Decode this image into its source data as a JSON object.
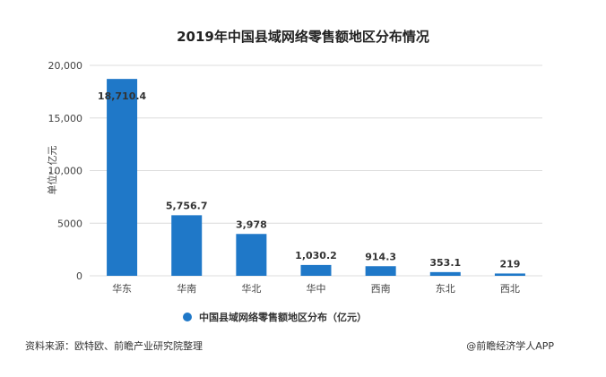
{
  "chart_data": {
    "type": "bar",
    "title": "2019年中国县域网络零售额地区分布情况",
    "ylabel": "单位：亿元",
    "xlabel": "",
    "ylim": [
      0,
      20000
    ],
    "yticks": [
      0,
      5000,
      10000,
      15000,
      20000
    ],
    "ytick_labels": [
      "0",
      "5000",
      "10,000",
      "15,000",
      "20,000"
    ],
    "grid": true,
    "legend_position": "bottom",
    "categories": [
      "华东",
      "华南",
      "华北",
      "华中",
      "西南",
      "东北",
      "西北"
    ],
    "series": [
      {
        "name": "中国县域网络零售额地区分布（亿元）",
        "color": "#1f78c8",
        "values": [
          18710.4,
          5756.7,
          3978,
          1030.2,
          914.3,
          353.1,
          219
        ],
        "labels": [
          "18,710.4",
          "5,756.7",
          "3,978",
          "1,030.2",
          "914.3",
          "353.1",
          "219"
        ]
      }
    ]
  },
  "footer": {
    "source": "资料来源：欧特欧、前瞻产业研究院整理",
    "credit": "@前瞻经济学人APP"
  }
}
